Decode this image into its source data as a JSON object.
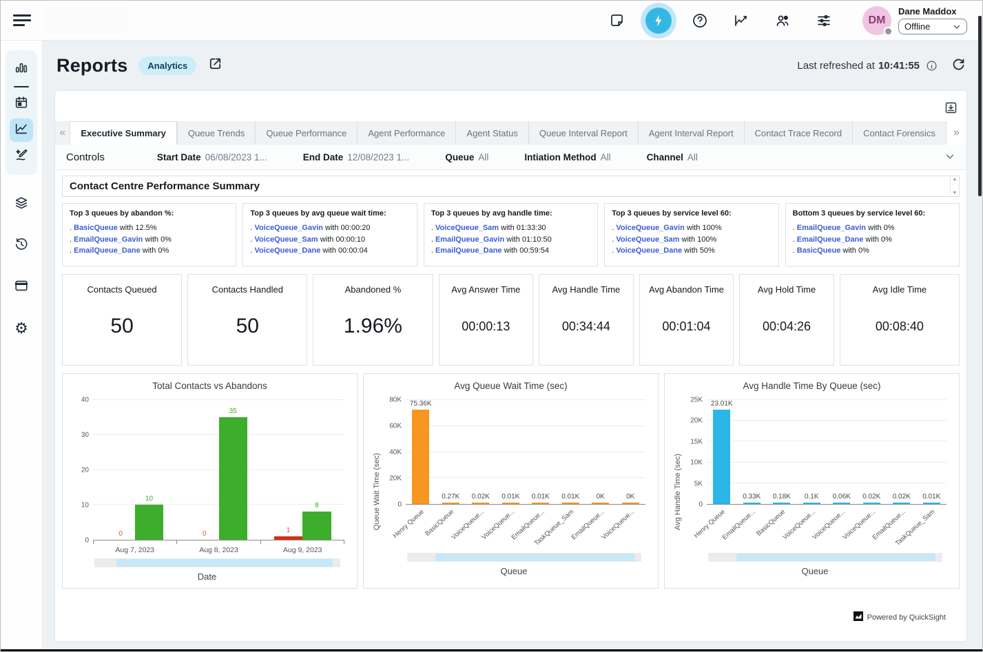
{
  "topbar": {
    "user": {
      "initials": "DM",
      "name": "Dane Maddox",
      "status": "Offline"
    },
    "icons": [
      "notes-icon",
      "flash-icon",
      "help-icon",
      "metrics-icon",
      "agents-icon",
      "settings-sliders-icon"
    ]
  },
  "sidebar": {
    "icons": [
      "bar-chart-icon",
      "calendar-icon",
      "line-chart-icon",
      "design-brush-icon",
      "layers-icon",
      "history-icon",
      "window-icon",
      "gear-icon"
    ],
    "active": "line-chart-icon"
  },
  "header": {
    "title": "Reports",
    "badge": "Analytics",
    "last_refreshed_prefix": "Last refreshed at",
    "last_refreshed_time": "10:41:55"
  },
  "tabs": [
    "Executive Summary",
    "Queue Trends",
    "Queue Performance",
    "Agent Performance",
    "Agent Status",
    "Queue Interval Report",
    "Agent Interval Report",
    "Contact Trace Record",
    "Contact Forensics"
  ],
  "active_tab": "Executive Summary",
  "controls": {
    "label": "Controls",
    "filters": [
      {
        "label": "Start Date",
        "value": "06/08/2023 1..."
      },
      {
        "label": "End Date",
        "value": "12/08/2023 1..."
      },
      {
        "label": "Queue",
        "value": "All"
      },
      {
        "label": "Intiation Method",
        "value": "All"
      },
      {
        "label": "Channel",
        "value": "All"
      }
    ]
  },
  "summary": {
    "title": "Contact Centre Performance Summary",
    "cards": [
      {
        "title": "Top 3 queues by abandon %:",
        "items": [
          [
            "BasicQueue",
            "with 12.5%"
          ],
          [
            "EmailQueue_Gavin",
            "with 0%"
          ],
          [
            "EmailQueue_Dane",
            "with 0%"
          ]
        ]
      },
      {
        "title": "Top 3 queues by avg queue wait time:",
        "items": [
          [
            "VoiceQueue_Gavin",
            "with 00:00:20"
          ],
          [
            "VoiceQueue_Sam",
            "with 00:00:10"
          ],
          [
            "VoiceQueue_Dane",
            "with 00:00:04"
          ]
        ]
      },
      {
        "title": "Top 3 queues by avg handle time:",
        "items": [
          [
            "VoiceQueue_Sam",
            "with 01:33:30"
          ],
          [
            "EmailQueue_Gavin",
            "with 01:10:50"
          ],
          [
            "EmailQueue_Dane",
            "with 00:59:54"
          ]
        ]
      },
      {
        "title": "Top 3 queues by service level 60:",
        "items": [
          [
            "VoiceQueue_Gavin",
            "with 100%"
          ],
          [
            "VoiceQueue_Sam",
            "with 100%"
          ],
          [
            "VoiceQueue_Dane",
            "with 50%"
          ]
        ]
      },
      {
        "title": "Bottom 3 queues by service level 60:",
        "items": [
          [
            "EmailQueue_Gavin",
            "with 0%"
          ],
          [
            "EmailQueue_Dane",
            "with 0%"
          ],
          [
            "BasicQueue",
            "with 0%"
          ]
        ]
      }
    ]
  },
  "kpis": [
    {
      "label": "Contacts Queued",
      "value": "50",
      "large": true,
      "wide": true
    },
    {
      "label": "Contacts Handled",
      "value": "50",
      "large": true,
      "wide": true
    },
    {
      "label": "Abandoned %",
      "value": "1.96%",
      "large": true,
      "wide": true
    },
    {
      "label": "Avg Answer Time",
      "value": "00:00:13"
    },
    {
      "label": "Avg Handle Time",
      "value": "00:34:44"
    },
    {
      "label": "Avg Abandon Time",
      "value": "00:01:04"
    },
    {
      "label": "Avg Hold Time",
      "value": "00:04:26"
    },
    {
      "label": "Avg Idle Time",
      "value": "00:08:40",
      "wide": true
    }
  ],
  "chart_data": [
    {
      "type": "bar",
      "title": "Total Contacts vs Abandons",
      "xlabel": "Date",
      "ylabel": "",
      "categories": [
        "Aug 7, 2023",
        "Aug 8, 2023",
        "Aug 9, 2023"
      ],
      "series": [
        {
          "name": "Abandons",
          "color": "#d13212",
          "label_color": "#d2603c",
          "values": [
            0,
            0,
            1
          ],
          "labels": [
            "0",
            "0",
            "1"
          ]
        },
        {
          "name": "Total Contacts",
          "color": "#3dae2b",
          "label_color": "#3dae2b",
          "values": [
            10,
            35,
            8
          ],
          "labels": [
            "10",
            "35",
            "8"
          ]
        }
      ],
      "ylim": [
        0,
        40
      ],
      "yticks": [
        "0",
        "10",
        "20",
        "30",
        "40"
      ],
      "rotated_labels": false,
      "grid": true,
      "legend": "none"
    },
    {
      "type": "bar",
      "title": "Avg Queue Wait Time (sec)",
      "xlabel": "Queue",
      "ylabel": "Queue Wait Time (sec)",
      "categories": [
        "Henry Queue",
        "BasicQueue",
        "VoiceQueue...",
        "VoiceQueue...",
        "EmailQueue...",
        "TaskQueue_Sam",
        "EmailQueue...",
        "VoiceQueue..."
      ],
      "series": [
        {
          "name": "Queue Wait Time",
          "color": "#f89623",
          "label_color": "#4a4a4a",
          "values": [
            75360,
            270,
            20,
            10,
            10,
            10,
            0,
            0
          ],
          "labels": [
            "75.36K",
            "0.27K",
            "0.02K",
            "0.01K",
            "0.01K",
            "0.01K",
            "0K",
            "0K"
          ]
        }
      ],
      "ylim": [
        0,
        80000
      ],
      "yticks": [
        "0",
        "20K",
        "40K",
        "60K",
        "80K"
      ],
      "rotated_labels": true,
      "grid": true,
      "legend": "none"
    },
    {
      "type": "bar",
      "title": "Avg Handle Time By Queue (sec)",
      "xlabel": "Queue",
      "ylabel": "Avg Handle Time (sec)",
      "categories": [
        "Henry Queue",
        "EmailQueue...",
        "BasicQueue",
        "VoiceQueue...",
        "VoiceQueue...",
        "VoiceQueue...",
        "EmailQueue...",
        "TaskQueue_Sam"
      ],
      "series": [
        {
          "name": "Avg Handle Time",
          "color": "#2bb6e8",
          "label_color": "#4a4a4a",
          "values": [
            23010,
            330,
            180,
            100,
            60,
            20,
            20,
            10
          ],
          "labels": [
            "23.01K",
            "0.33K",
            "0.18K",
            "0.1K",
            "0.06K",
            "0.02K",
            "0.02K",
            "0.01K"
          ]
        }
      ],
      "ylim": [
        0,
        25000
      ],
      "yticks": [
        "0",
        "5K",
        "10K",
        "15K",
        "20K",
        "25K"
      ],
      "rotated_labels": true,
      "grid": true,
      "legend": "none"
    }
  ],
  "footer": {
    "text": "Powered by QuickSight"
  }
}
